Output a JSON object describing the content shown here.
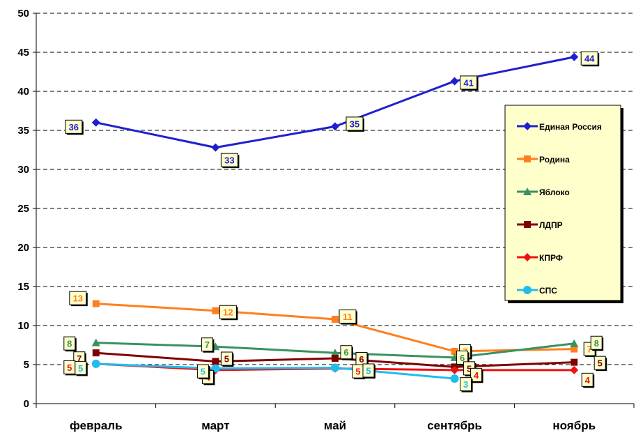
{
  "chart_data": {
    "type": "line",
    "title": "",
    "xlabel": "",
    "ylabel": "",
    "categories": [
      "февраль",
      "март",
      "май",
      "сентябрь",
      "ноябрь"
    ],
    "ylim": [
      0,
      50
    ],
    "yticks": [
      0,
      5,
      10,
      15,
      20,
      25,
      30,
      35,
      40,
      45,
      50
    ],
    "grid": "horizontal-dashed",
    "legend_position": "right",
    "series": [
      {
        "name": "Единая Россия",
        "color": "#1f1fd0",
        "marker": "diamond",
        "values": [
          36,
          32.8,
          35.5,
          41.3,
          44.4
        ],
        "labels": [
          "36",
          "33",
          "35",
          "41",
          "44"
        ]
      },
      {
        "name": "Родина",
        "color": "#ff7f1f",
        "marker": "square",
        "values": [
          12.8,
          11.9,
          10.8,
          6.7,
          7
        ],
        "labels": [
          "13",
          "12",
          "11",
          "7",
          "7"
        ]
      },
      {
        "name": "Яблоко",
        "color": "#3a9160",
        "marker": "triangle",
        "values": [
          7.8,
          7.3,
          6.5,
          5.9,
          7.7
        ],
        "labels": [
          "8",
          "7",
          "6",
          "6",
          "8"
        ]
      },
      {
        "name": "ЛДПР",
        "color": "#7f0000",
        "marker": "square",
        "values": [
          6.5,
          5.4,
          5.8,
          4.7,
          5.3
        ],
        "labels": [
          "7",
          "5",
          "6",
          "5",
          "5"
        ]
      },
      {
        "name": "КПРФ",
        "color": "#ee1111",
        "marker": "diamond",
        "values": [
          5.1,
          4.3,
          4.5,
          4.3,
          4.3
        ],
        "labels": [
          "5",
          "4",
          "5",
          "4",
          "4"
        ]
      },
      {
        "name": "СПС",
        "color": "#22bbee",
        "marker": "circle",
        "values": [
          5.1,
          4.5,
          4.6,
          3.2,
          null
        ],
        "labels": [
          "5",
          "5",
          "5",
          "3",
          ""
        ]
      }
    ]
  }
}
